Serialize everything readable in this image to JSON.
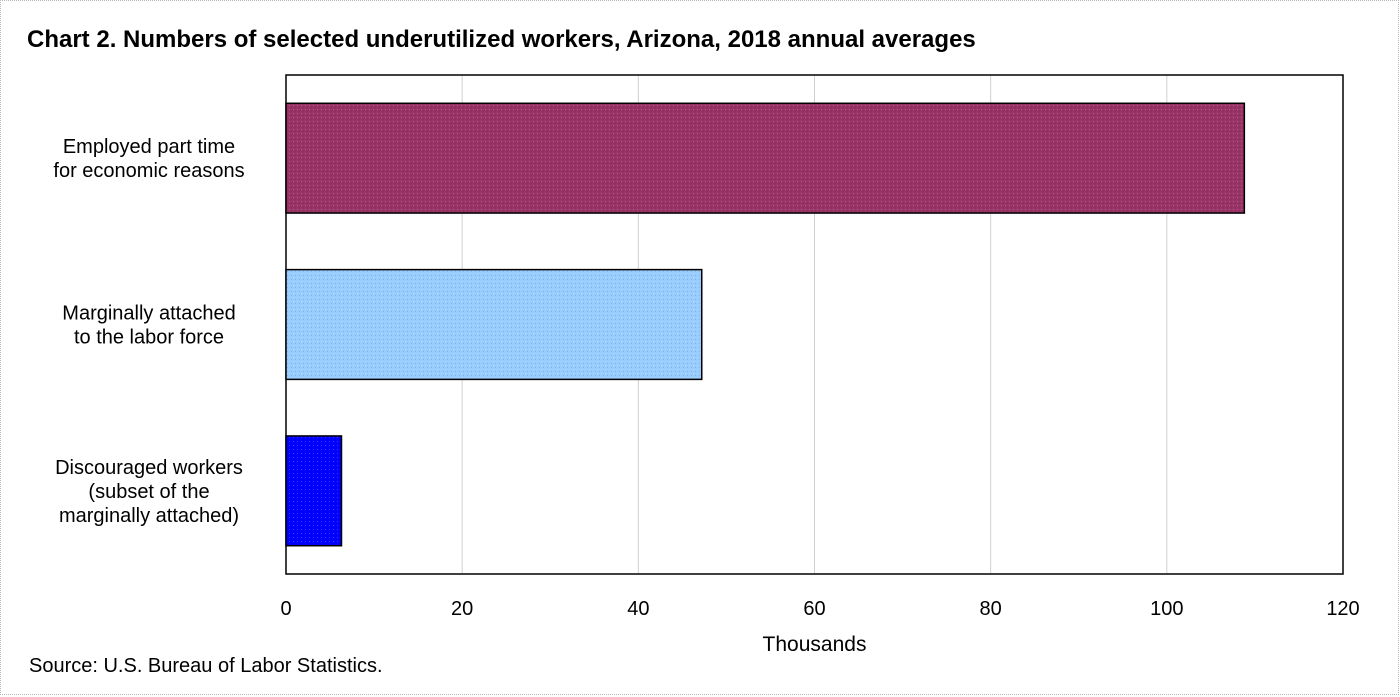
{
  "chart_data": {
    "type": "bar",
    "orientation": "horizontal",
    "title": "Chart 2. Numbers of selected underutilized workers, Arizona, 2018 annual averages",
    "xlabel": "Thousands",
    "ylabel": "",
    "xlim": [
      0,
      120
    ],
    "xticks": [
      "0",
      "20",
      "40",
      "60",
      "80",
      "100",
      "120"
    ],
    "grid": true,
    "legend": "none",
    "categories": [
      [
        "Employed part time",
        "for economic reasons"
      ],
      [
        "Marginally attached",
        "to the labor force"
      ],
      [
        "Discouraged workers",
        "(subset of the",
        "marginally attached)"
      ]
    ],
    "values": [
      108.8,
      47.2,
      6.3
    ],
    "colors": [
      "#993366",
      "#99ccff",
      "#0000ff"
    ]
  },
  "source": "Source: U.S. Bureau of Labor Statistics."
}
